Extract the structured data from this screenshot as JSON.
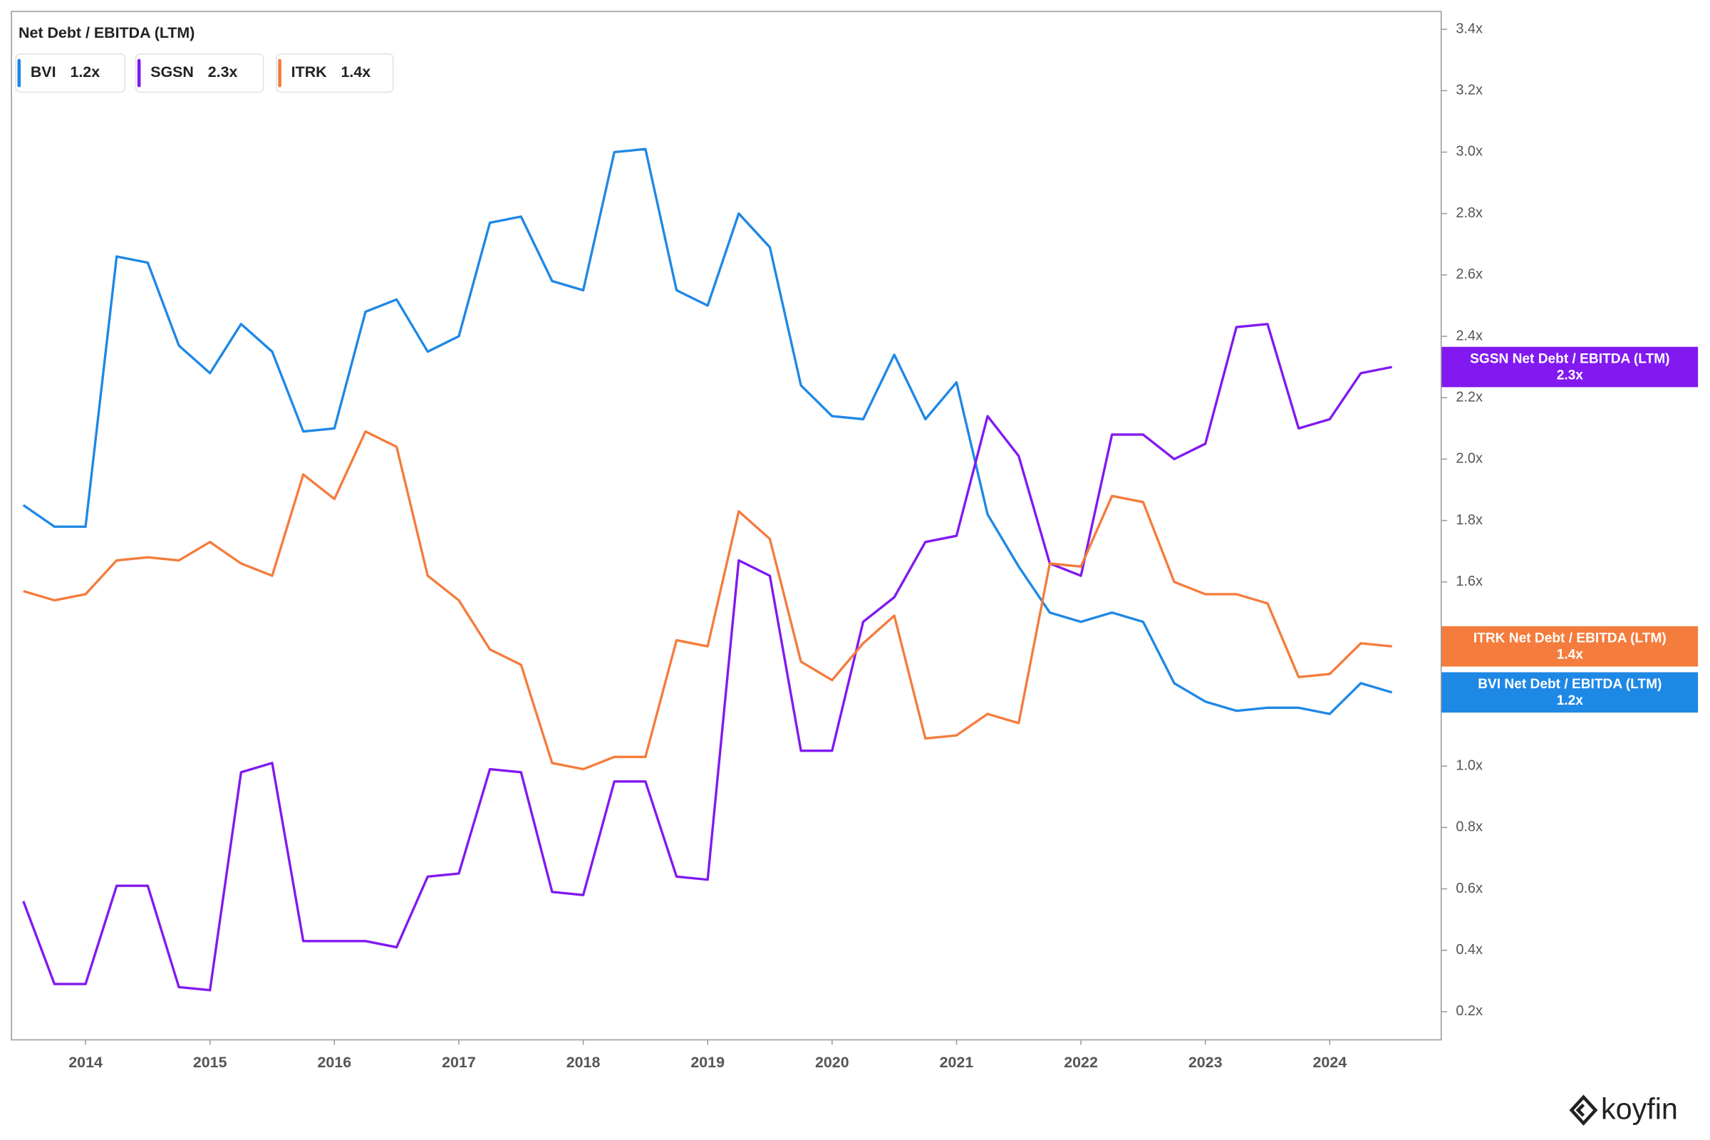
{
  "chart_data": {
    "type": "line",
    "title": "Net Debt / EBITDA (LTM)",
    "x": [
      2013.5,
      2013.75,
      2014,
      2014.25,
      2014.5,
      2014.75,
      2015,
      2015.25,
      2015.5,
      2015.75,
      2016,
      2016.25,
      2016.5,
      2016.75,
      2017,
      2017.25,
      2017.5,
      2017.75,
      2018,
      2018.25,
      2018.5,
      2018.75,
      2019,
      2019.25,
      2019.5,
      2019.75,
      2020,
      2020.25,
      2020.5,
      2020.75,
      2021,
      2021.25,
      2021.5,
      2021.75,
      2022,
      2022.25,
      2022.5,
      2022.75,
      2023,
      2023.25,
      2023.5,
      2023.75,
      2024,
      2024.25,
      2024.5
    ],
    "xlim": [
      2013.4,
      2024.9
    ],
    "xticks": [
      2014,
      2015,
      2016,
      2017,
      2018,
      2019,
      2020,
      2021,
      2022,
      2023,
      2024
    ],
    "ylim": [
      0.11,
      3.46
    ],
    "yticks": [
      {
        "value": 0.2,
        "label": "0.2x"
      },
      {
        "value": 0.4,
        "label": "0.4x"
      },
      {
        "value": 0.6,
        "label": "0.6x"
      },
      {
        "value": 0.8,
        "label": "0.8x"
      },
      {
        "value": 1.0,
        "label": "1.0x"
      },
      {
        "value": 1.2,
        "label": "1.2x"
      },
      {
        "value": 1.4,
        "label": "1.4x"
      },
      {
        "value": 1.6,
        "label": "1.6x"
      },
      {
        "value": 1.8,
        "label": "1.8x"
      },
      {
        "value": 2.0,
        "label": "2.0x"
      },
      {
        "value": 2.2,
        "label": "2.2x"
      },
      {
        "value": 2.4,
        "label": "2.4x"
      },
      {
        "value": 2.6,
        "label": "2.6x"
      },
      {
        "value": 2.8,
        "label": "2.8x"
      },
      {
        "value": 3.0,
        "label": "3.0x"
      },
      {
        "value": 3.2,
        "label": "3.2x"
      },
      {
        "value": 3.4,
        "label": "3.4x"
      }
    ],
    "series": [
      {
        "name": "BVI",
        "color": "#1e88e5",
        "value_label": "1.2x",
        "badge": "BVI Net Debt / EBITDA (LTM)",
        "values": [
          1.85,
          1.78,
          1.78,
          2.66,
          2.64,
          2.37,
          2.28,
          2.44,
          2.35,
          2.09,
          2.1,
          2.48,
          2.52,
          2.35,
          2.4,
          2.77,
          2.79,
          2.58,
          2.55,
          3.0,
          3.01,
          2.55,
          2.5,
          2.8,
          2.69,
          2.24,
          2.14,
          2.13,
          2.34,
          2.13,
          2.25,
          1.82,
          1.65,
          1.5,
          1.47,
          1.5,
          1.47,
          1.27,
          1.21,
          1.18,
          1.19,
          1.19,
          1.17,
          1.27,
          1.24
        ]
      },
      {
        "name": "SGSN",
        "color": "#8119f0",
        "value_label": "2.3x",
        "badge": "SGSN Net Debt / EBITDA (LTM)",
        "values": [
          0.56,
          0.29,
          0.29,
          0.61,
          0.61,
          0.28,
          0.27,
          0.98,
          1.01,
          0.43,
          0.43,
          0.43,
          0.41,
          0.64,
          0.65,
          0.99,
          0.98,
          0.59,
          0.58,
          0.95,
          0.95,
          0.64,
          0.63,
          1.67,
          1.62,
          1.05,
          1.05,
          1.47,
          1.55,
          1.73,
          1.75,
          2.14,
          2.01,
          1.66,
          1.62,
          2.08,
          2.08,
          2.0,
          2.05,
          2.43,
          2.44,
          2.1,
          2.13,
          2.28,
          2.3
        ]
      },
      {
        "name": "ITRK",
        "color": "#f47c3c",
        "value_label": "1.4x",
        "badge": "ITRK Net Debt / EBITDA (LTM)",
        "values": [
          1.57,
          1.54,
          1.56,
          1.67,
          1.68,
          1.67,
          1.73,
          1.66,
          1.62,
          1.95,
          1.87,
          2.09,
          2.04,
          1.62,
          1.54,
          1.38,
          1.33,
          1.01,
          0.99,
          1.03,
          1.03,
          1.41,
          1.39,
          1.83,
          1.74,
          1.34,
          1.28,
          1.4,
          1.49,
          1.09,
          1.1,
          1.17,
          1.14,
          1.66,
          1.65,
          1.88,
          1.86,
          1.6,
          1.56,
          1.56,
          1.53,
          1.29,
          1.3,
          1.4,
          1.39
        ]
      }
    ],
    "watermark": "koyfin"
  }
}
